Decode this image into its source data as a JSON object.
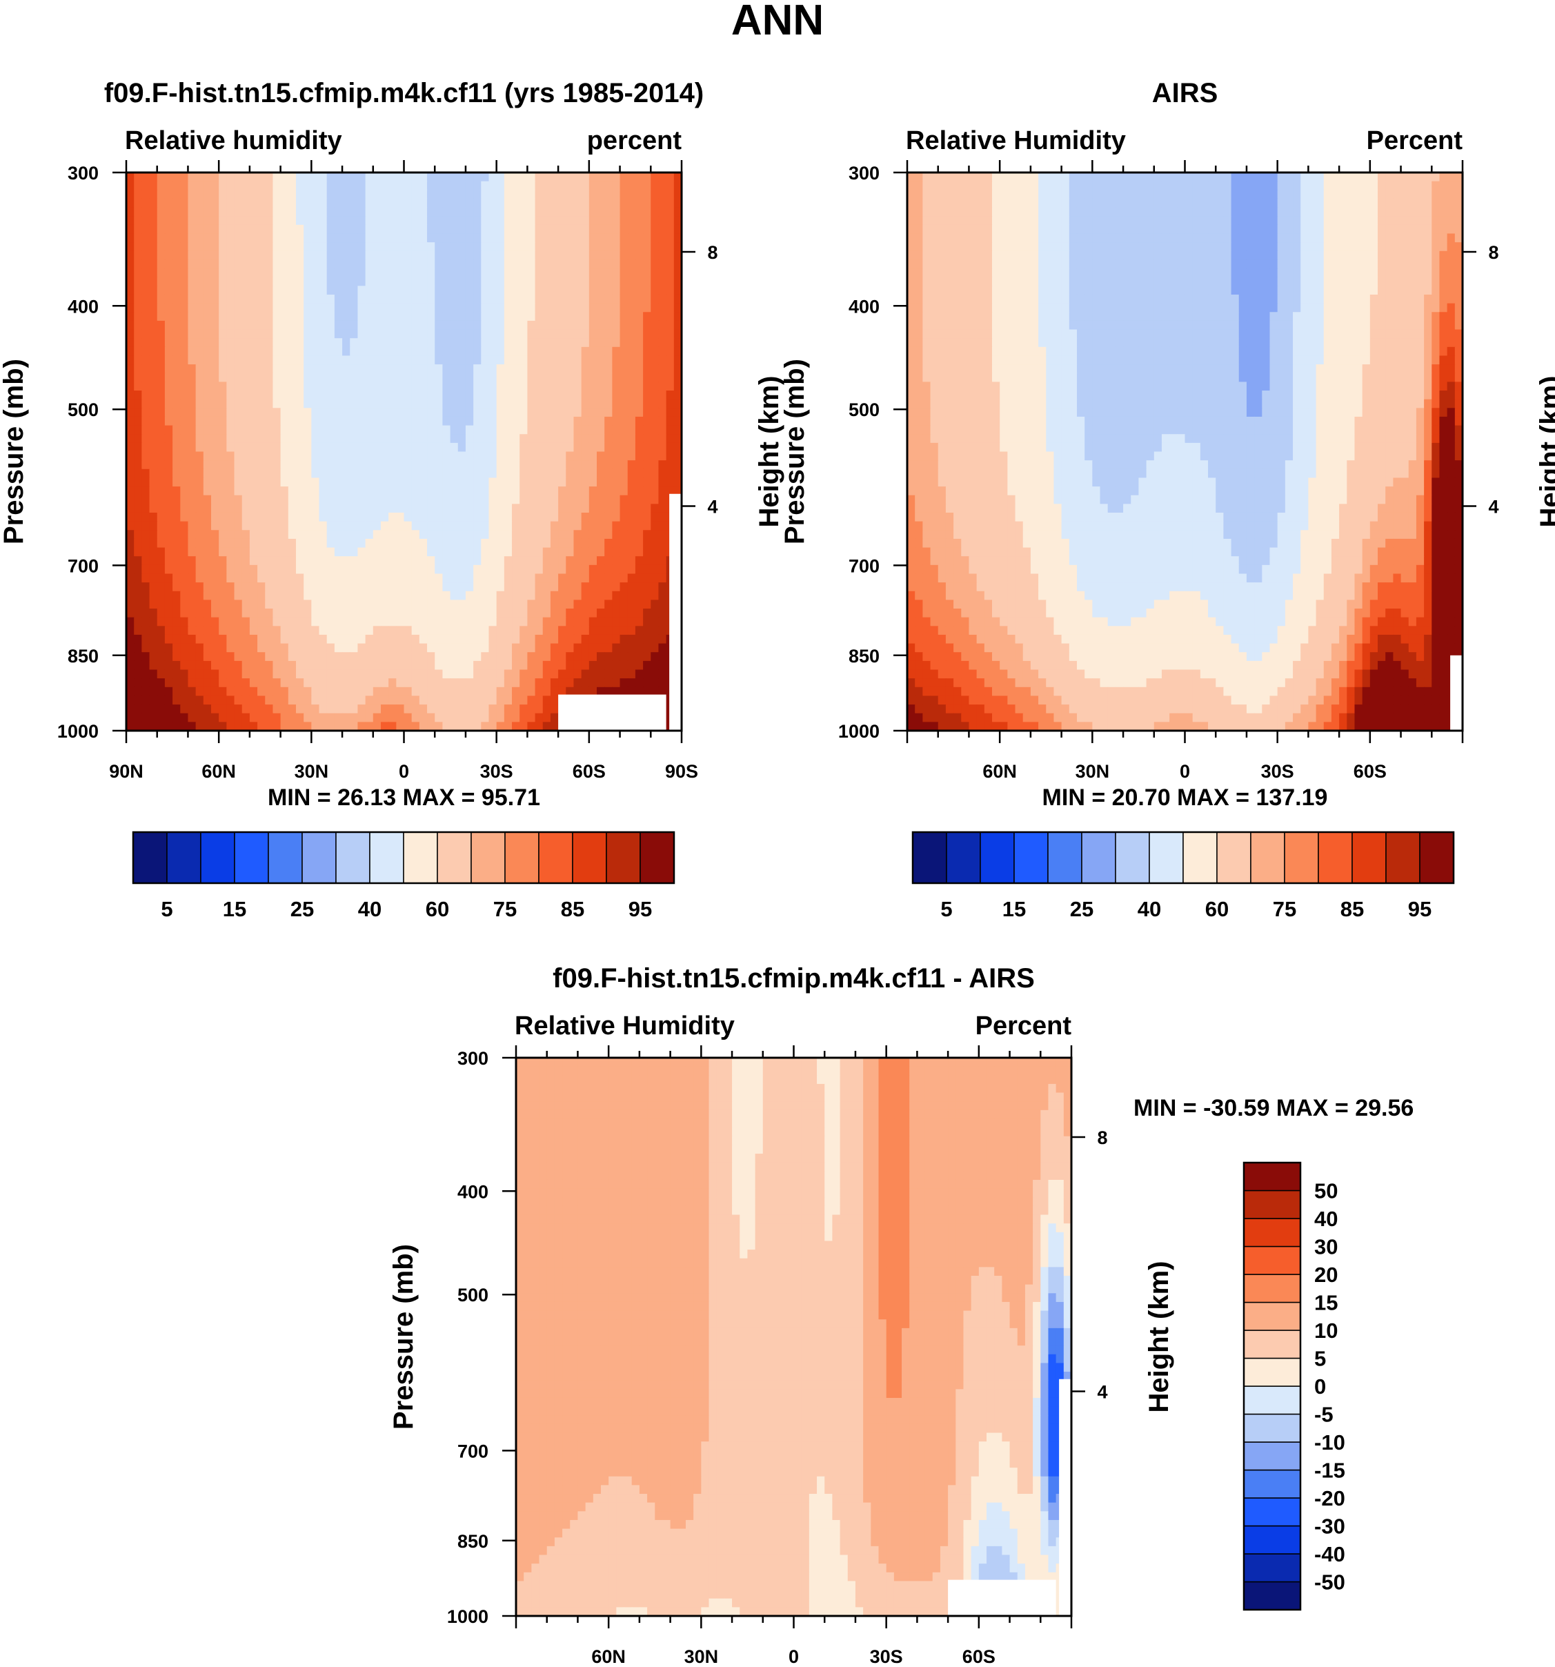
{
  "figure": {
    "title": "ANN"
  },
  "chart_data": [
    {
      "type": "heatmap",
      "panel": "model",
      "title": "f09.F-hist.tn15.cfmip.m4k.cf11 (yrs 1985-2014)",
      "left_label": "Relative humidity",
      "right_label": "percent",
      "ylabel": "Pressure (mb)",
      "y2label": "Height (km)",
      "yticks": [
        {
          "label": "300",
          "p": 300
        },
        {
          "label": "400",
          "p": 400
        },
        {
          "label": "500",
          "p": 500
        },
        {
          "label": "700",
          "p": 700
        },
        {
          "label": "850",
          "p": 850
        },
        {
          "label": "1000",
          "p": 1000
        }
      ],
      "y2ticks": [
        {
          "label": "8",
          "p": 356
        },
        {
          "label": "4",
          "p": 616
        }
      ],
      "xticks": [
        {
          "label": "90N",
          "lat": 90
        },
        {
          "label": "60N",
          "lat": 60
        },
        {
          "label": "30N",
          "lat": 30
        },
        {
          "label": "0",
          "lat": 0
        },
        {
          "label": "30S",
          "lat": -30
        },
        {
          "label": "60S",
          "lat": -60
        },
        {
          "label": "90S",
          "lat": -90
        }
      ],
      "xlim": [
        90,
        -90
      ],
      "ylim": [
        300,
        1000
      ],
      "stats": "MIN =  26.13  MAX =  95.71",
      "colorbar": "abs",
      "field": "model"
    },
    {
      "type": "heatmap",
      "panel": "obs",
      "title": "AIRS",
      "left_label": "Relative Humidity",
      "right_label": "Percent",
      "ylabel": "Pressure (mb)",
      "y2label": "Height (km)",
      "yticks": [
        {
          "label": "300",
          "p": 300
        },
        {
          "label": "400",
          "p": 400
        },
        {
          "label": "500",
          "p": 500
        },
        {
          "label": "700",
          "p": 700
        },
        {
          "label": "850",
          "p": 850
        },
        {
          "label": "1000",
          "p": 1000
        }
      ],
      "y2ticks": [
        {
          "label": "8",
          "p": 356
        },
        {
          "label": "4",
          "p": 616
        }
      ],
      "xticks": [
        {
          "label": "60N",
          "lat": 60
        },
        {
          "label": "30N",
          "lat": 30
        },
        {
          "label": "0",
          "lat": 0
        },
        {
          "label": "30S",
          "lat": -30
        },
        {
          "label": "60S",
          "lat": -60
        }
      ],
      "xlim": [
        90,
        -90
      ],
      "ylim": [
        300,
        1000
      ],
      "stats": "MIN =  20.70  MAX = 137.19",
      "colorbar": "abs",
      "field": "obs"
    },
    {
      "type": "heatmap",
      "panel": "diff",
      "title": "f09.F-hist.tn15.cfmip.m4k.cf11 - AIRS",
      "left_label": "Relative Humidity",
      "right_label": "Percent",
      "ylabel": "Pressure (mb)",
      "y2label": "Height (km)",
      "yticks": [
        {
          "label": "300",
          "p": 300
        },
        {
          "label": "400",
          "p": 400
        },
        {
          "label": "500",
          "p": 500
        },
        {
          "label": "700",
          "p": 700
        },
        {
          "label": "850",
          "p": 850
        },
        {
          "label": "1000",
          "p": 1000
        }
      ],
      "y2ticks": [
        {
          "label": "8",
          "p": 356
        },
        {
          "label": "4",
          "p": 616
        }
      ],
      "xticks": [
        {
          "label": "60N",
          "lat": 60
        },
        {
          "label": "30N",
          "lat": 30
        },
        {
          "label": "0",
          "lat": 0
        },
        {
          "label": "30S",
          "lat": -30
        },
        {
          "label": "60S",
          "lat": -60
        }
      ],
      "xlim": [
        90,
        -90
      ],
      "ylim": [
        300,
        1000
      ],
      "stats": "MIN = -30.59  MAX =  29.56",
      "colorbar": "diff",
      "field": "diff"
    }
  ],
  "colorbars": {
    "abs": {
      "colors": [
        "#0a1578",
        "#0a2ab0",
        "#0a3de6",
        "#1f5bff",
        "#4a7ff5",
        "#86a6f5",
        "#b7cef7",
        "#d9e9fb",
        "#fdecd9",
        "#fccbb0",
        "#fbae87",
        "#fa8856",
        "#f65e2c",
        "#e23d10",
        "#ba2a0a",
        "#8a0c08"
      ],
      "tick_labels": [
        "5",
        "15",
        "25",
        "40",
        "60",
        "75",
        "85",
        "95"
      ]
    },
    "diff": {
      "colors": [
        "#0a1578",
        "#0a2ab0",
        "#0a3de6",
        "#1f5bff",
        "#4a7ff5",
        "#86a6f5",
        "#b7cef7",
        "#d9e9fb",
        "#fdecd9",
        "#fccbb0",
        "#fbae87",
        "#fa8856",
        "#f65e2c",
        "#e23d10",
        "#ba2a0a",
        "#8a0c08"
      ],
      "tick_labels": [
        "-50",
        "-40",
        "-30",
        "-20",
        "-15",
        "-10",
        "-5",
        "0",
        "5",
        "10",
        "15",
        "20",
        "30",
        "40",
        "50"
      ]
    }
  }
}
